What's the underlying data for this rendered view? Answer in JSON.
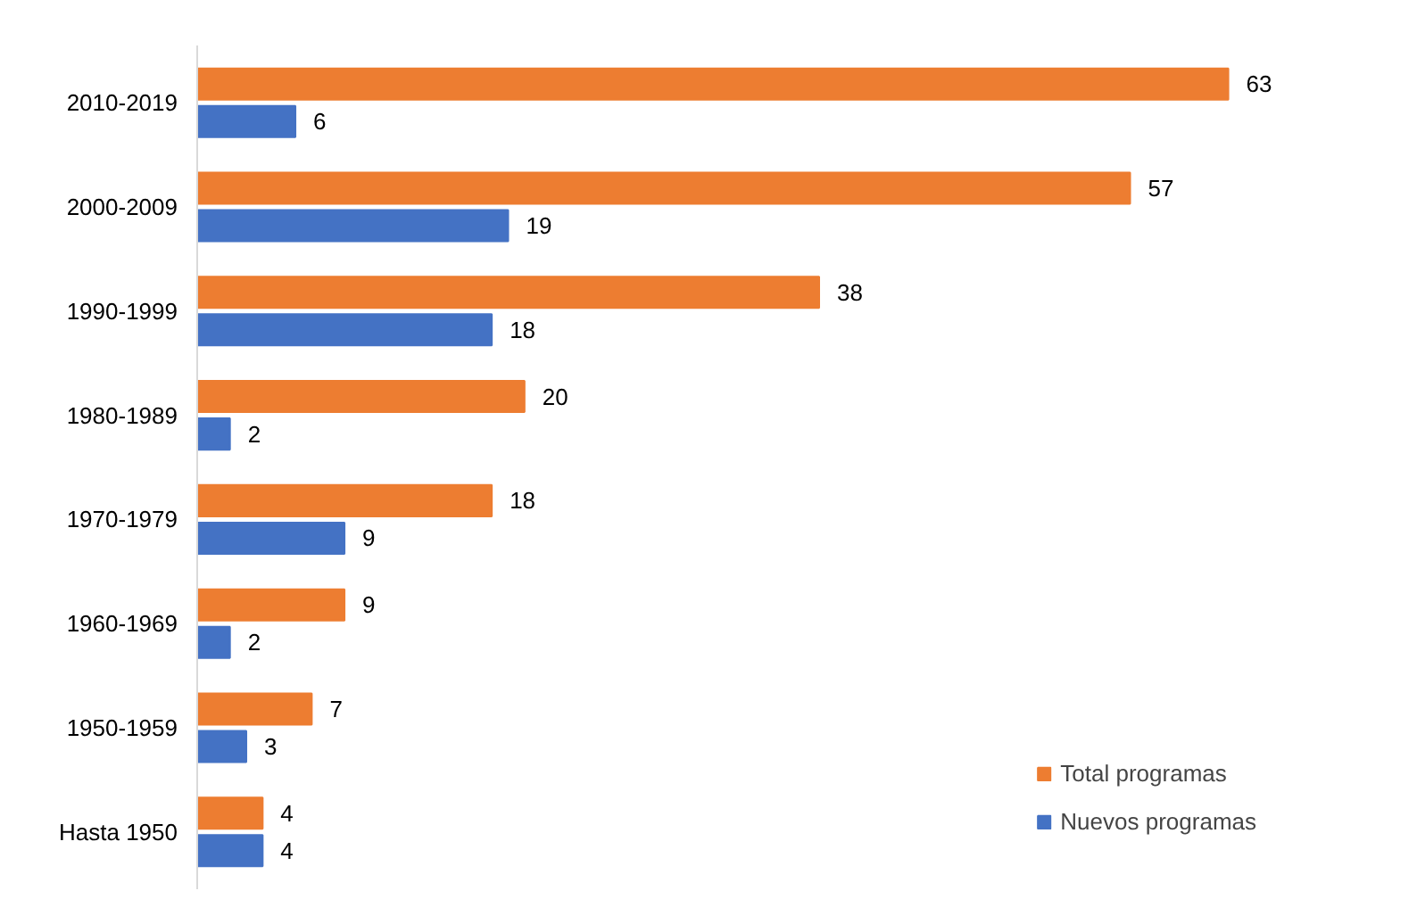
{
  "chart_data": {
    "type": "bar",
    "orientation": "horizontal",
    "categories": [
      "2010-2019",
      "2000-2009",
      "1990-1999",
      "1980-1989",
      "1970-1979",
      "1960-1969",
      "1950-1959",
      "Hasta 1950"
    ],
    "series": [
      {
        "name": "Total programas",
        "color": "#ed7d31",
        "values": [
          63,
          57,
          38,
          20,
          18,
          9,
          7,
          4
        ]
      },
      {
        "name": "Nuevos programas",
        "color": "#4472c4",
        "values": [
          6,
          19,
          18,
          2,
          9,
          2,
          3,
          4
        ]
      }
    ],
    "data_labels": true,
    "legend": "bottom right",
    "grid": false
  }
}
